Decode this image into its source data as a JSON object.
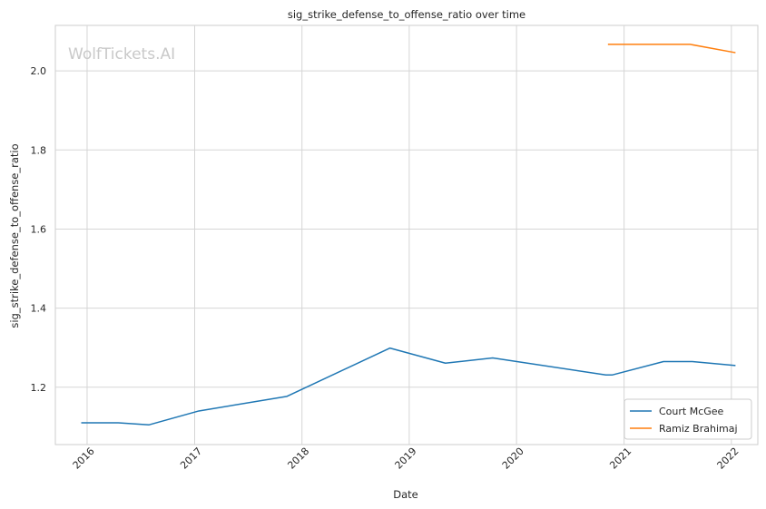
{
  "watermark": "WolfTickets.AI",
  "chart_data": {
    "type": "line",
    "title": "sig_strike_defense_to_offense_ratio over time",
    "xlabel": "Date",
    "ylabel": "sig_strike_defense_to_offense_ratio",
    "xlim": [
      "2015-09-15",
      "2022-04-01"
    ],
    "ylim": [
      1.055,
      2.115
    ],
    "x_ticks": [
      "2016-01-01",
      "2017-01-01",
      "2018-01-01",
      "2019-01-01",
      "2020-01-01",
      "2021-01-01",
      "2022-01-01"
    ],
    "x_tick_labels": [
      "2016",
      "2017",
      "2018",
      "2019",
      "2020",
      "2021",
      "2022"
    ],
    "y_ticks": [
      1.2,
      1.4,
      1.6,
      1.8,
      2.0
    ],
    "y_tick_labels": [
      "1.2",
      "1.4",
      "1.6",
      "1.8",
      "2.0"
    ],
    "grid": true,
    "legend_position": "bottom-right",
    "series": [
      {
        "name": "Court McGee",
        "color": "#1f77b4",
        "x": [
          "2015-12-12",
          "2016-04-16",
          "2016-07-30",
          "2017-01-15",
          "2017-11-11",
          "2018-10-27",
          "2019-05-04",
          "2019-10-12",
          "2020-10-31",
          "2020-11-21",
          "2021-05-15",
          "2021-08-21",
          "2022-01-15"
        ],
        "y": [
          1.11,
          1.11,
          1.105,
          1.14,
          1.177,
          1.299,
          1.261,
          1.274,
          1.231,
          1.231,
          1.265,
          1.265,
          1.255
        ]
      },
      {
        "name": "Ramiz Brahimaj",
        "color": "#ff7f0e",
        "x": [
          "2020-11-07",
          "2021-08-14",
          "2022-01-15"
        ],
        "y": [
          2.067,
          2.067,
          2.046
        ]
      }
    ]
  }
}
